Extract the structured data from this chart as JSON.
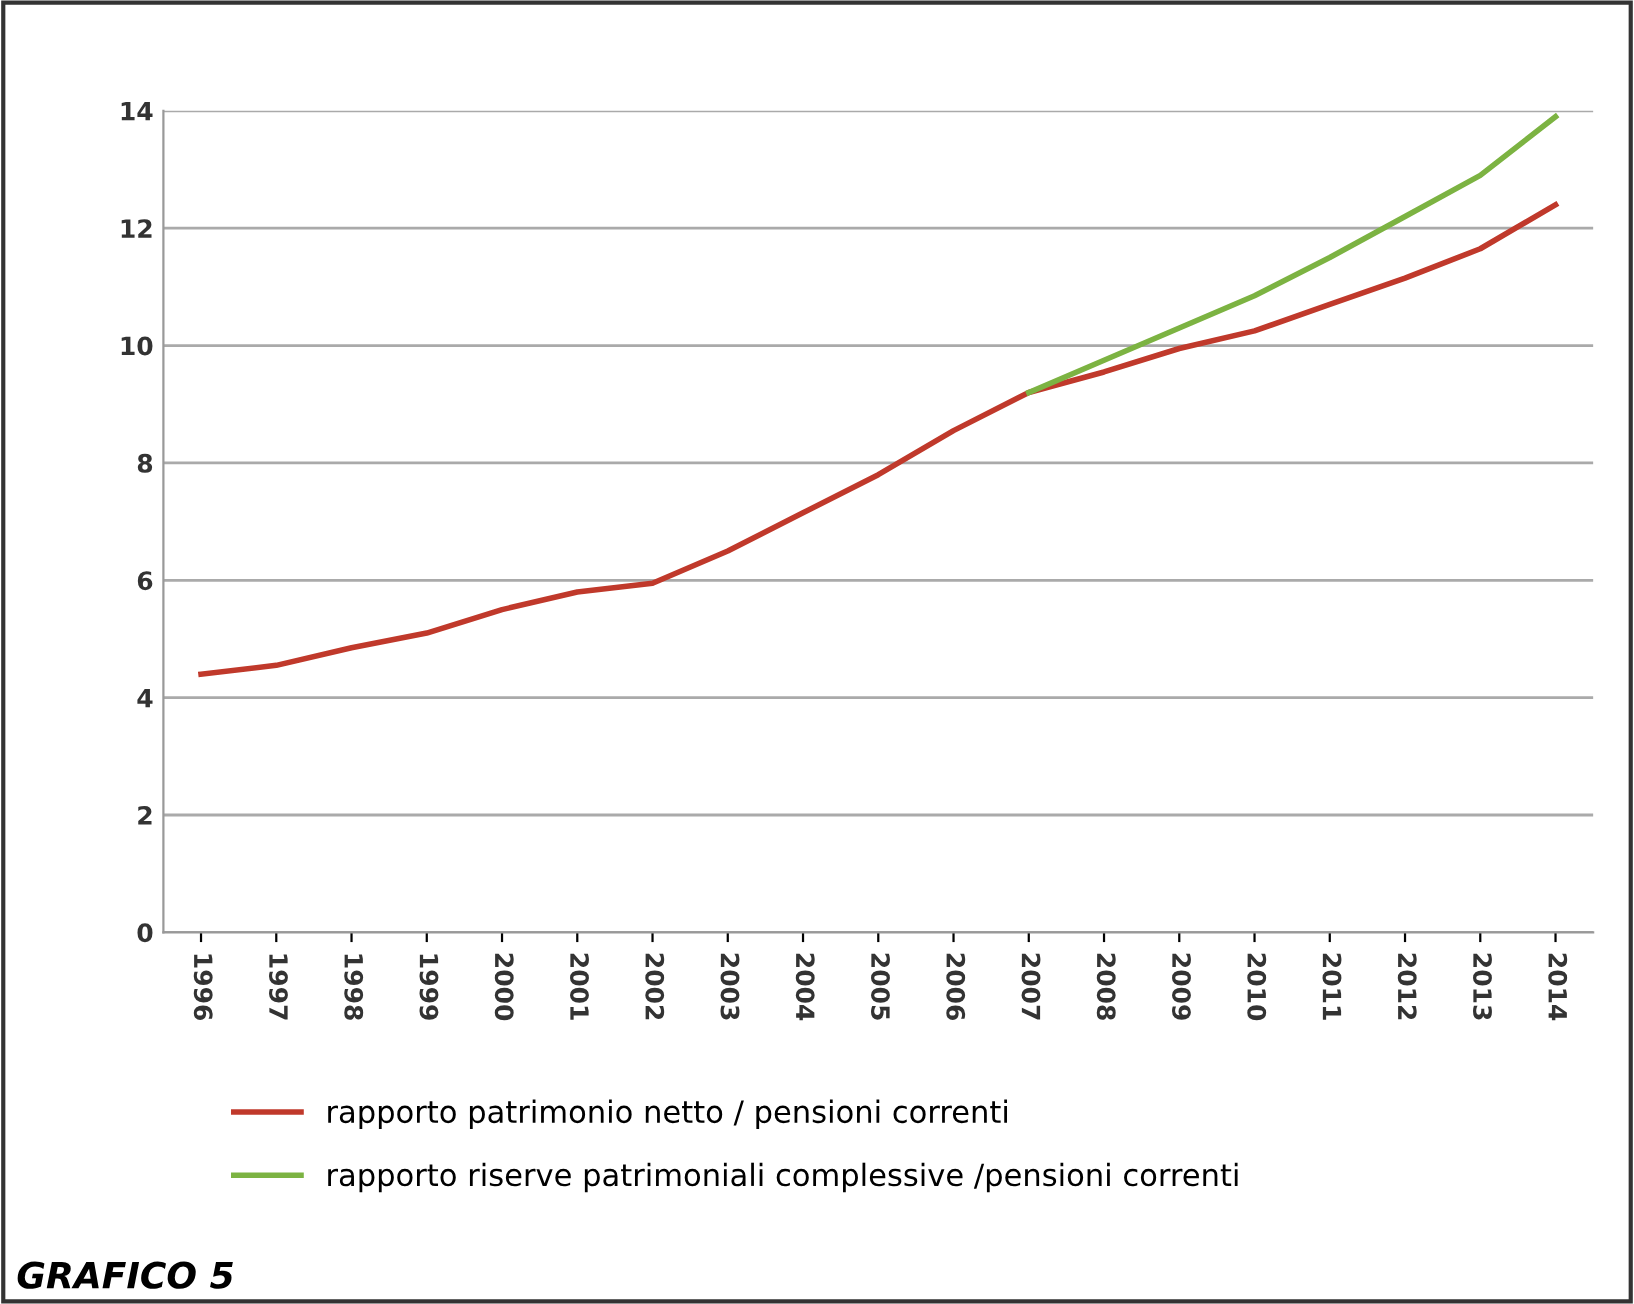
{
  "chart_data": {
    "type": "line",
    "categories": [
      "1996",
      "1997",
      "1998",
      "1999",
      "2000",
      "2001",
      "2002",
      "2003",
      "2004",
      "2005",
      "2006",
      "2007",
      "2008",
      "2009",
      "2010",
      "2011",
      "2012",
      "2013",
      "2014"
    ],
    "series": [
      {
        "name": "rapporto patrimonio netto / pensioni correnti",
        "color": "#c0392b",
        "values": [
          4.4,
          4.55,
          4.85,
          5.1,
          5.5,
          5.8,
          5.95,
          6.5,
          7.15,
          7.8,
          8.55,
          9.2,
          9.55,
          9.95,
          10.25,
          10.7,
          11.15,
          11.65,
          12.4
        ]
      },
      {
        "name": "rapporto riserve patrimoniali complessive /pensioni correnti",
        "color": "#7cb342",
        "values": [
          null,
          null,
          null,
          null,
          null,
          null,
          null,
          null,
          null,
          null,
          null,
          9.2,
          9.75,
          10.3,
          10.85,
          11.5,
          12.2,
          12.9,
          13.9
        ]
      }
    ],
    "ylim": [
      0,
      14
    ],
    "yticks": [
      0,
      2,
      4,
      6,
      8,
      10,
      12,
      14
    ],
    "grid": "y",
    "legend": "bottom",
    "marker": "none",
    "line_style": "solid",
    "annotations": [
      "GRAFICO 5"
    ]
  }
}
